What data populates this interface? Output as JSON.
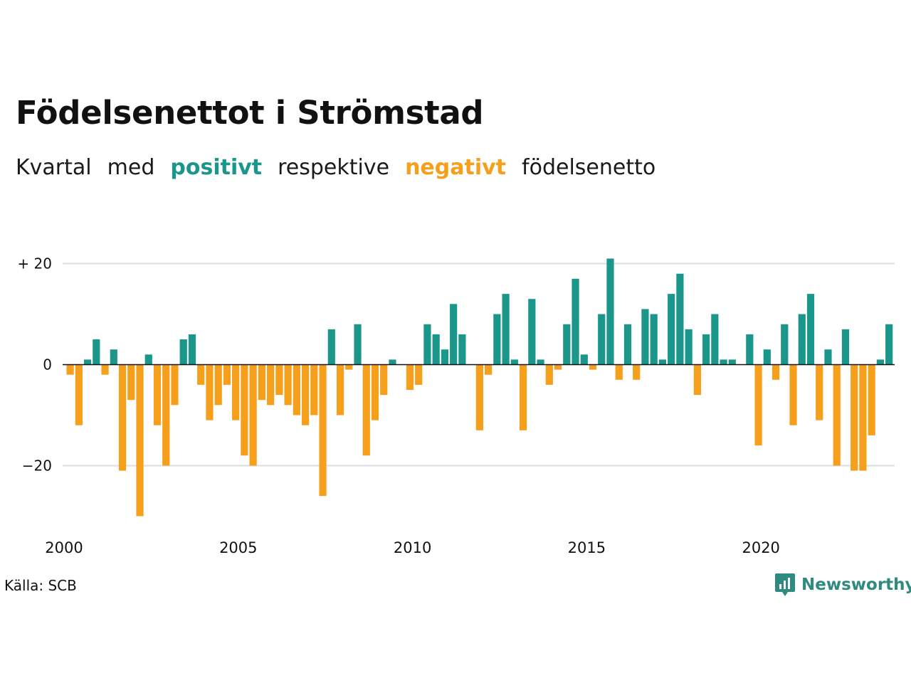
{
  "title": "Födelsenettot i Strömstad",
  "subtitle": {
    "prefix": "Kvartal",
    "med": "med",
    "positive_word": "positivt",
    "middle": "respektive",
    "negative_word": "negativt",
    "suffix": "födelsenetto"
  },
  "source": "Källa: SCB",
  "logo_text": "Newsworthy",
  "colors": {
    "positive": "#1b968a",
    "negative": "#f59f1b",
    "grid": "#dddddd",
    "zero": "#111111"
  },
  "chart_data": {
    "type": "bar",
    "x_start": "2000 Q1",
    "ylim": [
      -30,
      21
    ],
    "yticks": [
      {
        "value": 20,
        "label": "+ 20"
      },
      {
        "value": 0,
        "label": "0"
      },
      {
        "value": -20,
        "label": "−20"
      }
    ],
    "xticks": [
      "2000",
      "2005",
      "2010",
      "2015",
      "2020"
    ],
    "grid": true,
    "values": [
      -2,
      -12,
      1,
      5,
      -2,
      3,
      -21,
      -7,
      -30,
      2,
      -12,
      -20,
      -8,
      5,
      6,
      -4,
      -11,
      -8,
      -4,
      -11,
      -18,
      -20,
      -7,
      -8,
      -6,
      -8,
      -10,
      -12,
      -10,
      -26,
      7,
      -10,
      -1,
      8,
      -18,
      -11,
      -6,
      1,
      0,
      -5,
      -4,
      8,
      6,
      3,
      12,
      6,
      0,
      -13,
      -2,
      10,
      14,
      1,
      -13,
      13,
      1,
      -4,
      -1,
      8,
      17,
      2,
      -1,
      10,
      21,
      -3,
      8,
      -3,
      11,
      10,
      1,
      14,
      18,
      7,
      -6,
      6,
      10,
      1,
      1,
      0,
      6,
      -16,
      3,
      -3,
      8,
      -12,
      10,
      14,
      -11,
      3,
      -20,
      7,
      -21,
      -21,
      -14,
      1,
      8
    ]
  }
}
